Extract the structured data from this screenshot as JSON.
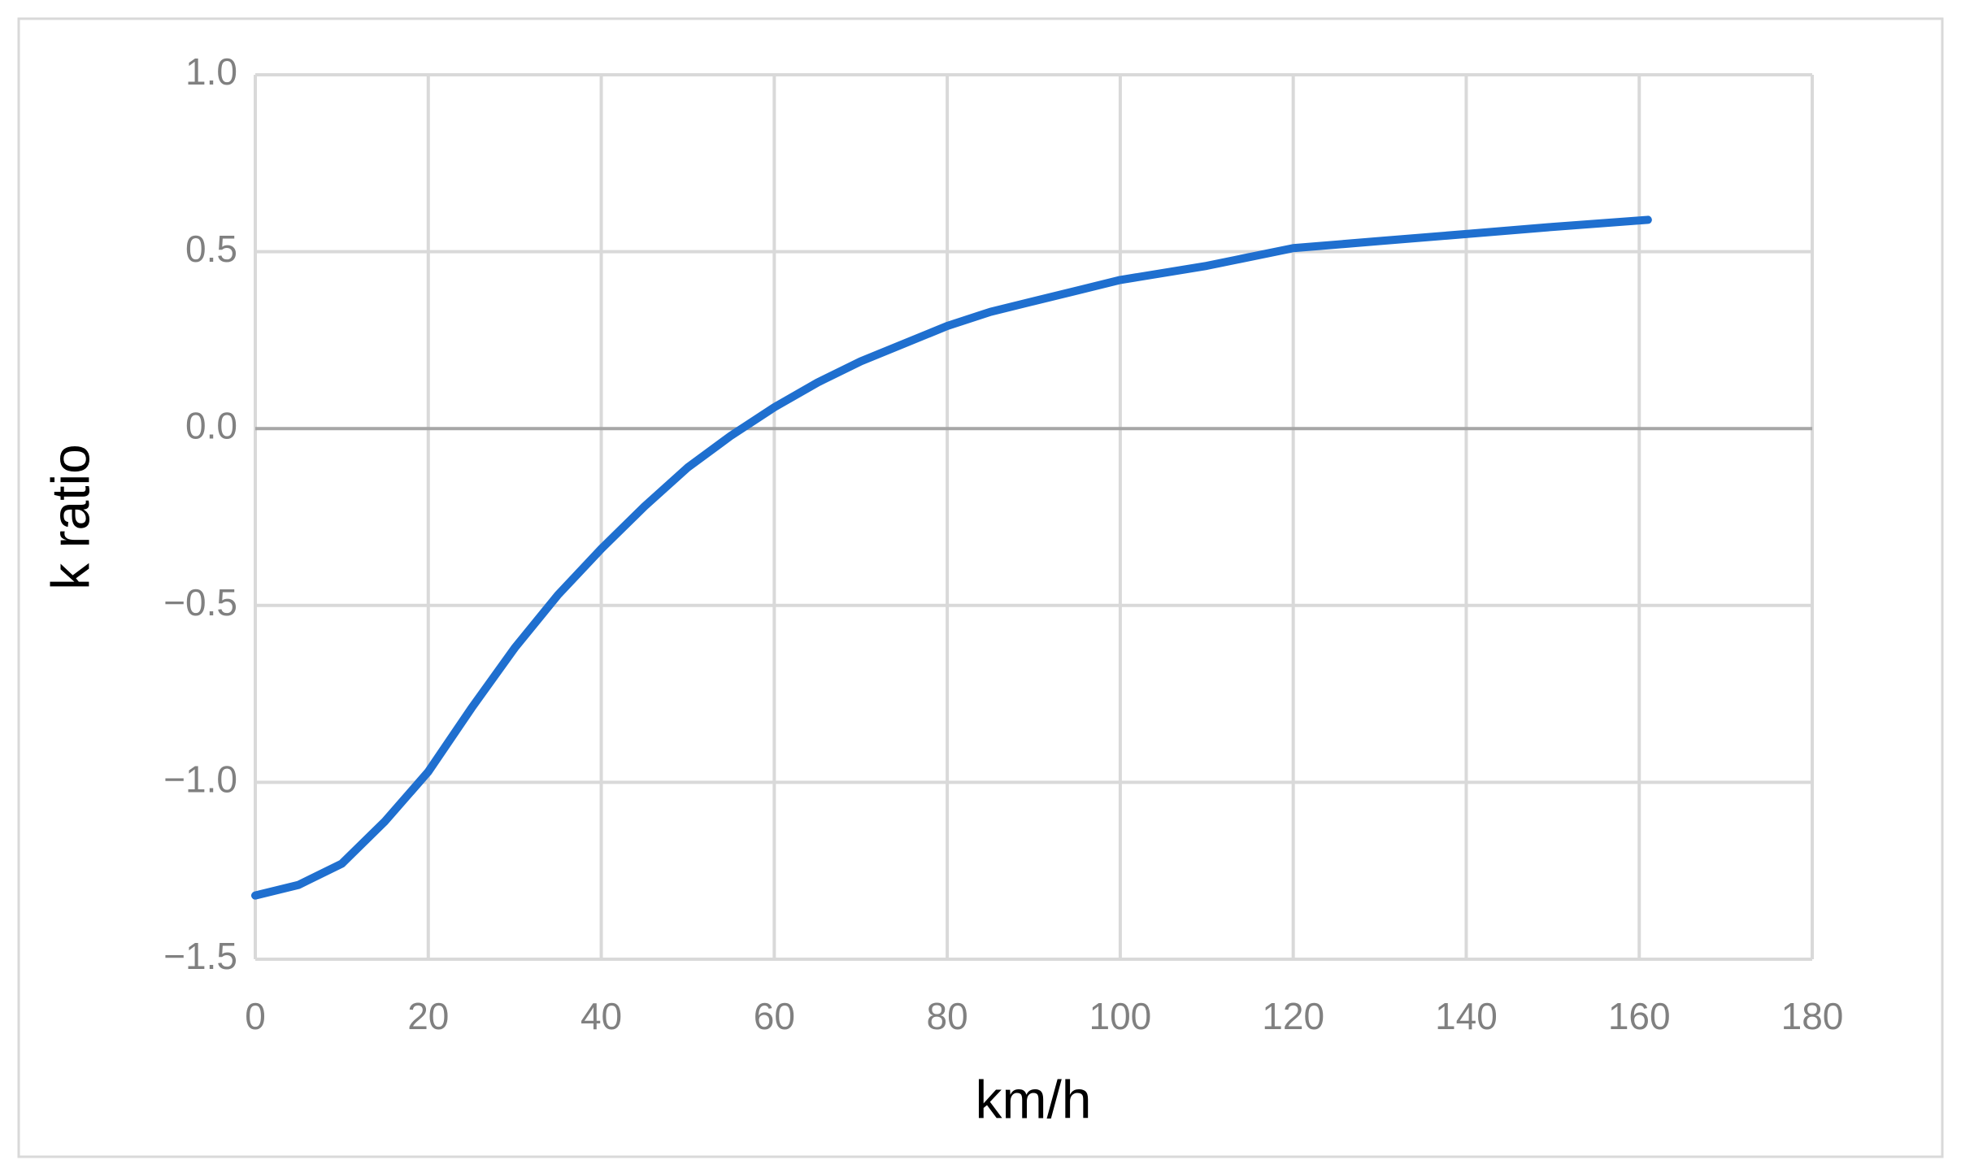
{
  "chart_data": {
    "type": "line",
    "x_label": "km/h",
    "y_label": "k ratio",
    "x": [
      0,
      5,
      10,
      15,
      20,
      25,
      30,
      35,
      40,
      45,
      50,
      55,
      60,
      65,
      70,
      75,
      80,
      85,
      90,
      95,
      100,
      110,
      120,
      130,
      140,
      150,
      161
    ],
    "series": [
      {
        "name": "k ratio",
        "color": "#1f6fcf",
        "values": [
          -1.32,
          -1.29,
          -1.23,
          -1.11,
          -0.97,
          -0.79,
          -0.62,
          -0.47,
          -0.34,
          -0.22,
          -0.11,
          -0.02,
          0.06,
          0.13,
          0.19,
          0.24,
          0.29,
          0.33,
          0.36,
          0.39,
          0.42,
          0.46,
          0.51,
          0.53,
          0.55,
          0.57,
          0.59
        ]
      }
    ],
    "xlim": [
      0,
      180
    ],
    "xticks": [
      0,
      20,
      40,
      60,
      80,
      100,
      120,
      140,
      160,
      180
    ],
    "ylim": [
      -1.5,
      1.0
    ],
    "yticks": [
      {
        "value": -1.5,
        "label": "−1.5"
      },
      {
        "value": -1.0,
        "label": "−1.0"
      },
      {
        "value": -0.5,
        "label": "−0.5"
      },
      {
        "value": 0,
        "label": "0.0"
      },
      {
        "value": 0.5,
        "label": "0.5"
      },
      {
        "value": 1.0,
        "label": "1.0"
      }
    ],
    "grid": true
  }
}
